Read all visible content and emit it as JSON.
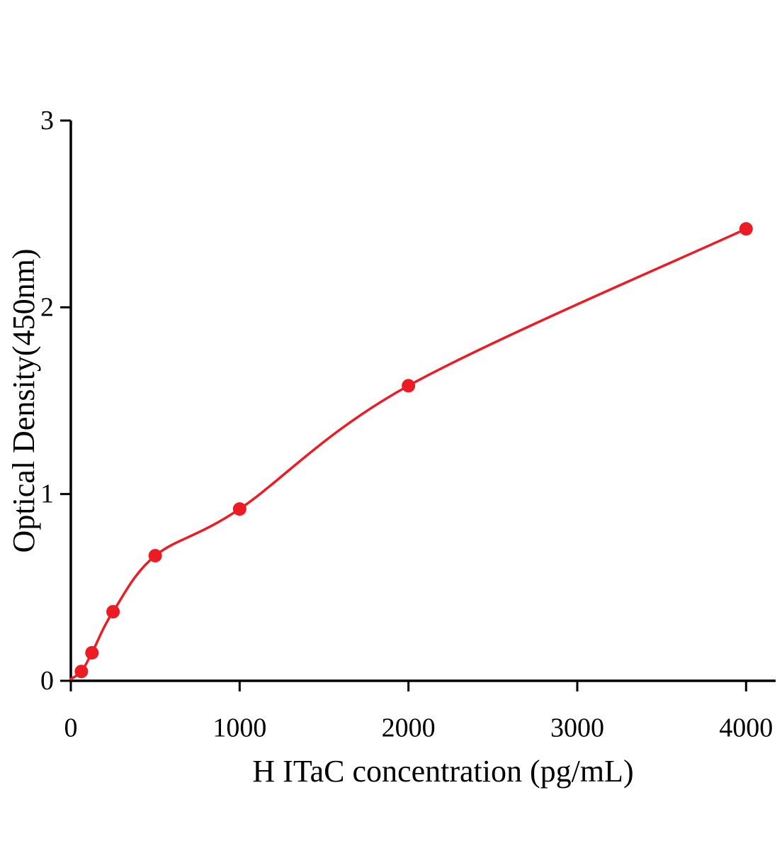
{
  "figure": {
    "background": "#ffffff"
  },
  "chart_data": {
    "type": "scatter",
    "title": "",
    "xlabel": "H ITaC concentration (pg/mL)",
    "ylabel": "Optical Density(450nm)",
    "x": [
      62.5,
      125,
      250,
      500,
      1000,
      2000,
      4000
    ],
    "y": [
      0.05,
      0.15,
      0.37,
      0.67,
      0.92,
      1.58,
      2.42
    ],
    "curve_origin": [
      0,
      0.01
    ],
    "xlim": [
      0,
      4175
    ],
    "ylim": [
      0,
      3
    ],
    "x_ticks": [
      0,
      1000,
      2000,
      3000,
      4000
    ],
    "y_ticks": [
      0,
      1,
      2,
      3
    ],
    "grid": false,
    "legend": "none",
    "point_color": "#ed1c24",
    "curve_color": "#ed1c24",
    "axis_color": "#000000",
    "fit": "smooth saturating standard curve through points"
  }
}
